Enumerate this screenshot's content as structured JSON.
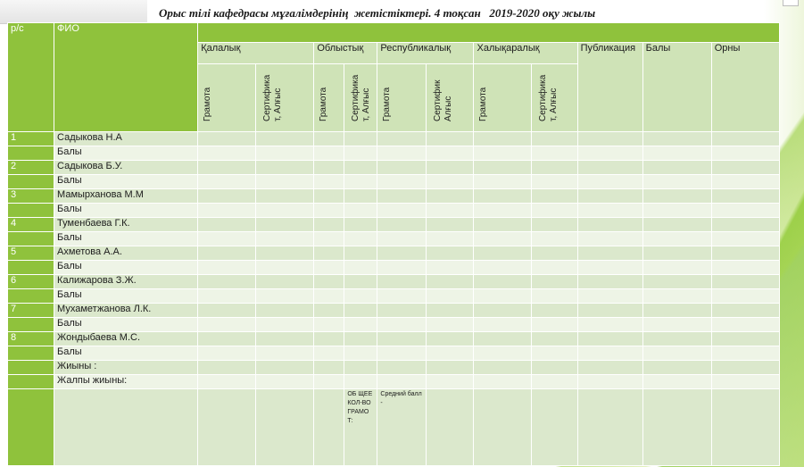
{
  "title": "Орыс тілі кафедрасы мұғалімдерінің  жетістіктері. 4 тоқсан   2019-2020 оқу жылы",
  "headers": {
    "rc": "р/с",
    "fio": "ФИО",
    "city": "Қалалық",
    "oblast": "Облыстық",
    "republic": "Республикалық",
    "international": "Халықаралық",
    "publication": "Публикация",
    "score": "Балы",
    "place": "Орны",
    "gramota": "Грамота",
    "cert_city_1": "Сертифика",
    "cert_city_2": "т, Алғыс",
    "cert_obl_1": "Сертифика",
    "cert_obl_2": "т, Алғыс",
    "cert_rep_1": "Сертифик",
    "cert_rep_2": "Алғыс",
    "cert_int_1": "Сертифика",
    "cert_int_2": "т, Алғыс"
  },
  "rows": [
    {
      "num": "1",
      "name": "Садыкова Н.А"
    },
    {
      "num": "2",
      "name": "Садыкова Б.У."
    },
    {
      "num": "3",
      "name": "Мамырханова М.М"
    },
    {
      "num": "4",
      "name": "Туменбаева Г.К."
    },
    {
      "num": "5",
      "name": "Ахметова А.А."
    },
    {
      "num": "6",
      "name": "Калижарова З.Ж."
    },
    {
      "num": "7",
      "name": "Мухаметжанова Л.К."
    },
    {
      "num": "8",
      "name": "Жондыбаева М.С."
    }
  ],
  "score_label": "Балы",
  "totals": {
    "sum": "Жиыны :",
    "grand": "Жалпы жиыны:",
    "common_gramota": "ОБ ЩЕЕ КОЛ-ВО ГРАМО Т:",
    "avg": "Средний балл -"
  },
  "colors": {
    "header_green": "#8fc23c",
    "row_dark": "#dbe8cc",
    "row_light": "#eef4e6"
  }
}
